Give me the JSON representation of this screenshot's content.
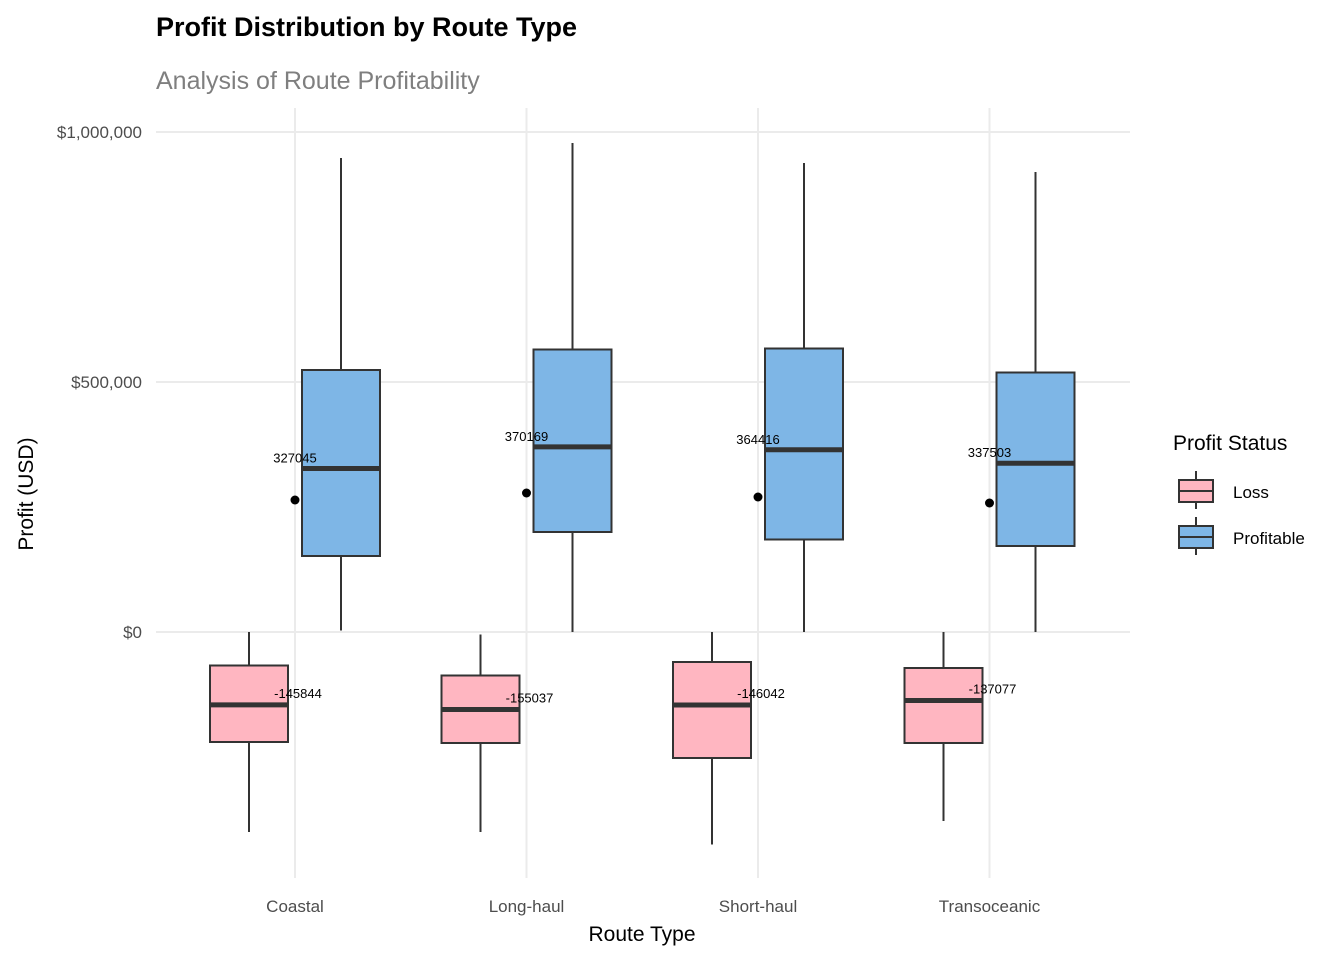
{
  "chart_data": {
    "type": "boxplot",
    "title": "Profit Distribution by Route Type",
    "subtitle": "Analysis of Route Profitability",
    "xlabel": "Route Type",
    "ylabel": "Profit (USD)",
    "categories": [
      "Coastal",
      "Long-haul",
      "Short-haul",
      "Transoceanic"
    ],
    "ylim": [
      -480000,
      1050000
    ],
    "yticks": [
      0,
      500000,
      1000000
    ],
    "ytick_labels": [
      "$0",
      "$500,000",
      "$1,000,000"
    ],
    "grid": true,
    "legend": {
      "title": "Profit Status",
      "position": "right"
    },
    "series": [
      {
        "name": "Loss",
        "color": "#FFB6C1",
        "boxes": [
          {
            "min": -400000,
            "q1": -220000,
            "median": -145844,
            "q3": -67000,
            "max": 0
          },
          {
            "min": -400000,
            "q1": -222000,
            "median": -155037,
            "q3": -87000,
            "max": -5000
          },
          {
            "min": -425000,
            "q1": -252000,
            "median": -146042,
            "q3": -60000,
            "max": 0
          },
          {
            "min": -378000,
            "q1": -222000,
            "median": -137077,
            "q3": -72000,
            "max": 0
          }
        ],
        "median_labels": [
          "-145844",
          "-155037",
          "-146042",
          "-137077"
        ]
      },
      {
        "name": "Profitable",
        "color": "#7EB6E6",
        "boxes": [
          {
            "min": 3000,
            "q1": 152000,
            "median": 327045,
            "q3": 524000,
            "max": 948000
          },
          {
            "min": 0,
            "q1": 200000,
            "median": 370169,
            "q3": 565000,
            "max": 978000
          },
          {
            "min": 0,
            "q1": 185000,
            "median": 364416,
            "q3": 567000,
            "max": 938000
          },
          {
            "min": 0,
            "q1": 172000,
            "median": 337503,
            "q3": 519000,
            "max": 920000
          }
        ],
        "median_labels": [
          "327045",
          "370169",
          "364416",
          "337503"
        ],
        "mean_points": [
          264000,
          278000,
          270000,
          258000
        ]
      }
    ]
  }
}
